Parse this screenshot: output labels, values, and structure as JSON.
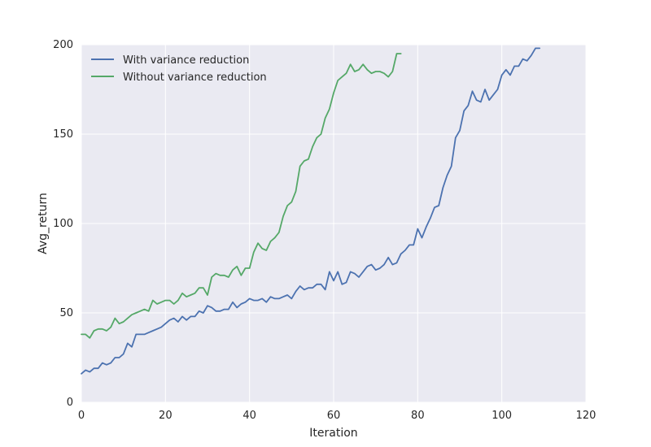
{
  "chart_data": {
    "type": "line",
    "title": "",
    "xlabel": "Iteration",
    "ylabel": "Avg_return",
    "xlim": [
      0,
      120
    ],
    "ylim": [
      0,
      200
    ],
    "xticks": [
      0,
      20,
      40,
      60,
      80,
      100,
      120
    ],
    "yticks": [
      0,
      50,
      100,
      150,
      200
    ],
    "grid": true,
    "legend_position": "top-left",
    "series": [
      {
        "name": "With variance reduction",
        "color": "#4c72b0",
        "x": [
          0,
          1,
          2,
          3,
          4,
          5,
          6,
          7,
          8,
          9,
          10,
          11,
          12,
          13,
          14,
          15,
          16,
          17,
          18,
          19,
          20,
          21,
          22,
          23,
          24,
          25,
          26,
          27,
          28,
          29,
          30,
          31,
          32,
          33,
          34,
          35,
          36,
          37,
          38,
          39,
          40,
          41,
          42,
          43,
          44,
          45,
          46,
          47,
          48,
          49,
          50,
          51,
          52,
          53,
          54,
          55,
          56,
          57,
          58,
          59,
          60,
          61,
          62,
          63,
          64,
          65,
          66,
          67,
          68,
          69,
          70,
          71,
          72,
          73,
          74,
          75,
          76,
          77,
          78,
          79,
          80,
          81,
          82,
          83,
          84,
          85,
          86,
          87,
          88,
          89,
          90,
          91,
          92,
          93,
          94,
          95,
          96,
          97,
          98,
          99,
          100,
          101,
          102,
          103,
          104,
          105,
          106,
          107,
          108,
          109
        ],
        "values": [
          16,
          18,
          17,
          19,
          19,
          22,
          21,
          22,
          25,
          25,
          27,
          33,
          31,
          38,
          38,
          38,
          39,
          40,
          41,
          42,
          44,
          46,
          47,
          45,
          48,
          46,
          48,
          48,
          51,
          50,
          54,
          53,
          51,
          51,
          52,
          52,
          56,
          53,
          55,
          56,
          58,
          57,
          57,
          58,
          56,
          59,
          58,
          58,
          59,
          60,
          58,
          62,
          65,
          63,
          64,
          64,
          66,
          66,
          63,
          73,
          68,
          73,
          66,
          67,
          73,
          72,
          70,
          73,
          76,
          77,
          74,
          75,
          77,
          81,
          77,
          78,
          83,
          85,
          88,
          88,
          97,
          92,
          98,
          103,
          109,
          110,
          120,
          127,
          132,
          148,
          152,
          163,
          166,
          174,
          169,
          168,
          175,
          169,
          172,
          175,
          183,
          186,
          183,
          188,
          188,
          192,
          191,
          194,
          198,
          198
        ]
      },
      {
        "name": "Without variance reduction",
        "color": "#55a868",
        "x": [
          0,
          1,
          2,
          3,
          4,
          5,
          6,
          7,
          8,
          9,
          10,
          11,
          12,
          13,
          14,
          15,
          16,
          17,
          18,
          19,
          20,
          21,
          22,
          23,
          24,
          25,
          26,
          27,
          28,
          29,
          30,
          31,
          32,
          33,
          34,
          35,
          36,
          37,
          38,
          39,
          40,
          41,
          42,
          43,
          44,
          45,
          46,
          47,
          48,
          49,
          50,
          51,
          52,
          53,
          54,
          55,
          56,
          57,
          58,
          59,
          60,
          61,
          62,
          63,
          64,
          65,
          66,
          67,
          68,
          69,
          70,
          71,
          72,
          73,
          74,
          75,
          76
        ],
        "values": [
          38,
          38,
          36,
          40,
          41,
          41,
          40,
          42,
          47,
          44,
          45,
          47,
          49,
          50,
          51,
          52,
          51,
          57,
          55,
          56,
          57,
          57,
          55,
          57,
          61,
          59,
          60,
          61,
          64,
          64,
          60,
          70,
          72,
          71,
          71,
          70,
          74,
          76,
          71,
          75,
          75,
          84,
          89,
          86,
          85,
          90,
          92,
          95,
          104,
          110,
          112,
          118,
          132,
          135,
          136,
          143,
          148,
          150,
          159,
          164,
          173,
          180,
          182,
          184,
          189,
          185,
          186,
          189,
          186,
          184,
          185,
          185,
          184,
          182,
          185,
          195,
          195
        ]
      }
    ]
  }
}
